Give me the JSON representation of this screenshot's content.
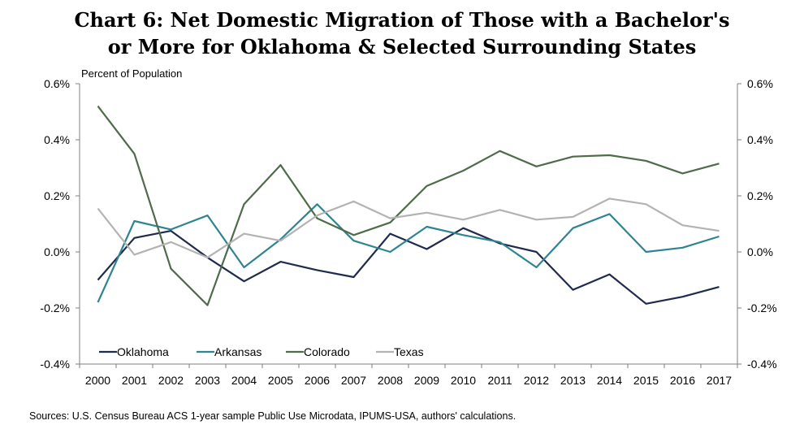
{
  "chart_data": {
    "type": "line",
    "title_line1": "Chart 6: Net Domestic Migration of Those with a Bachelor's",
    "title_line2": "or More for Oklahoma & Selected Surrounding States",
    "ylabel": "Percent of Population",
    "source": "Sources: U.S. Census Bureau ACS 1-year sample Public Use Microdata, IPUMS-USA, authors' calculations.",
    "ylim": [
      -0.4,
      0.6
    ],
    "y_ticks": [
      0.6,
      0.4,
      0.2,
      0.0,
      -0.2,
      -0.4
    ],
    "y_tick_labels": [
      "0.6%",
      "0.4%",
      "0.2%",
      "0.0%",
      "-0.2%",
      "-0.4%"
    ],
    "y_tick_labels_right": [
      "0.6%",
      "0.4%",
      "0.2%",
      "0.0%",
      "-0.2%",
      "-0.4%"
    ],
    "grid": false,
    "legend_position": "bottom-left",
    "x": [
      "2000",
      "2001",
      "2002",
      "2003",
      "2004",
      "2005",
      "2006",
      "2007",
      "2008",
      "2009",
      "2010",
      "2011",
      "2012",
      "2013",
      "2014",
      "2015",
      "2016",
      "2017"
    ],
    "series": [
      {
        "name": "Oklahoma",
        "color": "#1f2a4d",
        "values": [
          -0.1,
          0.05,
          0.075,
          -0.02,
          -0.105,
          -0.035,
          -0.065,
          -0.09,
          0.065,
          0.01,
          0.085,
          0.03,
          0.0,
          -0.135,
          -0.08,
          -0.185,
          -0.16,
          -0.125
        ]
      },
      {
        "name": "Arkansas",
        "color": "#2e8491",
        "values": [
          -0.18,
          0.11,
          0.08,
          0.13,
          -0.055,
          0.045,
          0.17,
          0.04,
          0.0,
          0.09,
          0.06,
          0.035,
          -0.055,
          0.085,
          0.135,
          0.0,
          0.015,
          0.055
        ]
      },
      {
        "name": "Colorado",
        "color": "#4f6b4a",
        "values": [
          0.52,
          0.35,
          -0.06,
          -0.19,
          0.17,
          0.31,
          0.12,
          0.06,
          0.105,
          0.235,
          0.29,
          0.36,
          0.305,
          0.34,
          0.345,
          0.325,
          0.28,
          0.315
        ]
      },
      {
        "name": "Texas",
        "color": "#b3b3b3",
        "values": [
          0.155,
          -0.01,
          0.035,
          -0.02,
          0.065,
          0.04,
          0.13,
          0.18,
          0.12,
          0.14,
          0.115,
          0.15,
          0.115,
          0.125,
          0.19,
          0.17,
          0.095,
          0.075
        ]
      }
    ]
  }
}
